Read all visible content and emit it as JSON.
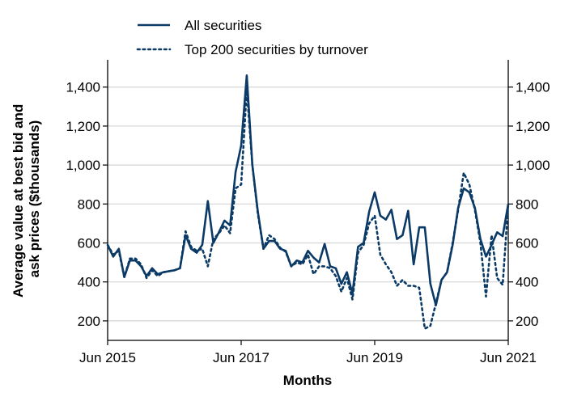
{
  "chart_data": {
    "type": "line",
    "xlabel": "Months",
    "ylabel_lines": [
      "Average value at best bid and",
      "ask prices ($thousands)"
    ],
    "xlim": [
      "2015-06",
      "2021-06"
    ],
    "ylim": [
      100,
      1540
    ],
    "x_ticks": [
      "Jun 2015",
      "Jun 2017",
      "Jun 2019",
      "Jun 2021"
    ],
    "y_ticks": [
      200,
      400,
      600,
      800,
      1000,
      1200,
      1400
    ],
    "y_tick_labels": [
      "200",
      "400",
      "600",
      "800",
      "1,000",
      "1,200",
      "1,400"
    ],
    "grid": "horizontal",
    "secondary_y_axis": true,
    "legend_position": "top-left",
    "line_color": "#0b3a66",
    "series": [
      {
        "name": "All securities",
        "style": "solid",
        "x": [
          "2015-06",
          "2015-07",
          "2015-08",
          "2015-09",
          "2015-10",
          "2015-11",
          "2015-12",
          "2016-01",
          "2016-02",
          "2016-03",
          "2016-04",
          "2016-05",
          "2016-06",
          "2016-07",
          "2016-08",
          "2016-09",
          "2016-10",
          "2016-11",
          "2016-12",
          "2017-01",
          "2017-02",
          "2017-03",
          "2017-04",
          "2017-05",
          "2017-06",
          "2017-07",
          "2017-08",
          "2017-09",
          "2017-10",
          "2017-11",
          "2017-12",
          "2018-01",
          "2018-02",
          "2018-03",
          "2018-04",
          "2018-05",
          "2018-06",
          "2018-07",
          "2018-08",
          "2018-09",
          "2018-10",
          "2018-11",
          "2018-12",
          "2019-01",
          "2019-02",
          "2019-03",
          "2019-04",
          "2019-05",
          "2019-06",
          "2019-07",
          "2019-08",
          "2019-09",
          "2019-10",
          "2019-11",
          "2019-12",
          "2020-01",
          "2020-02",
          "2020-03",
          "2020-04",
          "2020-05",
          "2020-06",
          "2020-07",
          "2020-08",
          "2020-09",
          "2020-10",
          "2020-11",
          "2020-12",
          "2021-01",
          "2021-02",
          "2021-03",
          "2021-04",
          "2021-05",
          "2021-06"
        ],
        "values": [
          590,
          530,
          570,
          425,
          510,
          510,
          480,
          430,
          470,
          440,
          450,
          455,
          460,
          470,
          640,
          570,
          550,
          590,
          815,
          600,
          655,
          715,
          690,
          965,
          1100,
          1460,
          1000,
          760,
          570,
          610,
          610,
          570,
          560,
          480,
          510,
          500,
          560,
          525,
          500,
          595,
          480,
          470,
          390,
          450,
          340,
          580,
          600,
          760,
          860,
          740,
          720,
          770,
          620,
          640,
          765,
          490,
          680,
          680,
          390,
          280,
          410,
          450,
          590,
          780,
          880,
          860,
          780,
          620,
          530,
          590,
          655,
          635,
          800
        ]
      },
      {
        "name": "Top 200 securities by turnover",
        "style": "dotted",
        "x": [
          "2015-06",
          "2015-07",
          "2015-08",
          "2015-09",
          "2015-10",
          "2015-11",
          "2015-12",
          "2016-01",
          "2016-02",
          "2016-03",
          "2016-04",
          "2016-05",
          "2016-06",
          "2016-07",
          "2016-08",
          "2016-09",
          "2016-10",
          "2016-11",
          "2016-12",
          "2017-01",
          "2017-02",
          "2017-03",
          "2017-04",
          "2017-05",
          "2017-06",
          "2017-07",
          "2017-08",
          "2017-09",
          "2017-10",
          "2017-11",
          "2017-12",
          "2018-01",
          "2018-02",
          "2018-03",
          "2018-04",
          "2018-05",
          "2018-06",
          "2018-07",
          "2018-08",
          "2018-09",
          "2018-10",
          "2018-11",
          "2018-12",
          "2019-01",
          "2019-02",
          "2019-03",
          "2019-04",
          "2019-05",
          "2019-06",
          "2019-07",
          "2019-08",
          "2019-09",
          "2019-10",
          "2019-11",
          "2019-12",
          "2020-01",
          "2020-02",
          "2020-03",
          "2020-04",
          "2020-05",
          "2020-06",
          "2020-07",
          "2020-08",
          "2020-09",
          "2020-10",
          "2020-11",
          "2020-12",
          "2021-01",
          "2021-02",
          "2021-03",
          "2021-04",
          "2021-05",
          "2021-06"
        ],
        "values": [
          590,
          540,
          560,
          425,
          520,
          520,
          490,
          420,
          460,
          430,
          450,
          455,
          460,
          470,
          660,
          580,
          560,
          570,
          480,
          620,
          650,
          690,
          650,
          880,
          900,
          1390,
          1000,
          750,
          570,
          640,
          620,
          575,
          555,
          480,
          500,
          490,
          540,
          440,
          480,
          480,
          470,
          430,
          350,
          420,
          310,
          550,
          590,
          700,
          740,
          540,
          490,
          450,
          380,
          410,
          380,
          380,
          370,
          160,
          175,
          290,
          410,
          450,
          600,
          770,
          960,
          900,
          770,
          600,
          325,
          640,
          420,
          385,
          800
        ]
      }
    ]
  }
}
